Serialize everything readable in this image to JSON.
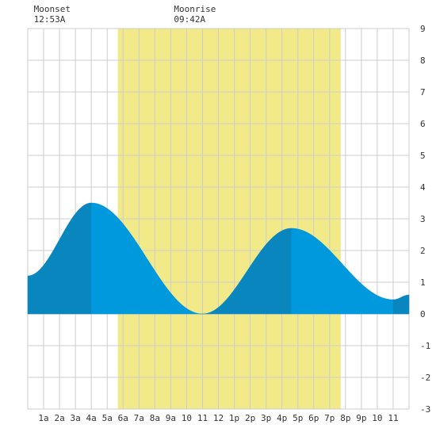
{
  "chart_data": {
    "type": "area",
    "title": "",
    "xlabel": "",
    "ylabel": "",
    "xlim": [
      0,
      24
    ],
    "ylim": [
      -3,
      9
    ],
    "y_ticks": [
      -3,
      -2,
      -1,
      0,
      1,
      2,
      3,
      4,
      5,
      6,
      7,
      8,
      9
    ],
    "x_tick_labels": [
      "1a",
      "2a",
      "3a",
      "4a",
      "5a",
      "6a",
      "7a",
      "8a",
      "9a",
      "10",
      "11",
      "12",
      "1p",
      "2p",
      "3p",
      "4p",
      "5p",
      "6p",
      "7p",
      "8p",
      "9p",
      "10",
      "11"
    ],
    "grid": true,
    "daylight": {
      "start": 5.67,
      "end": 19.7
    },
    "moon_events": [
      {
        "label": "Moonset",
        "time": "12:53A",
        "hour": 0.88
      },
      {
        "label": "Moonrise",
        "time": "09:42A",
        "hour": 9.7
      }
    ],
    "extremes": [
      {
        "type": "low",
        "hour": 0.0,
        "value": 1.2
      },
      {
        "type": "high",
        "hour": 4.0,
        "value": 3.5
      },
      {
        "type": "low",
        "hour": 11.0,
        "value": 0.0
      },
      {
        "type": "high",
        "hour": 16.6,
        "value": 2.7
      },
      {
        "type": "low",
        "hour": 23.0,
        "value": 0.45
      },
      {
        "type": "high",
        "hour": 24.0,
        "value": 0.6
      }
    ]
  },
  "colors": {
    "background": "#ffffff",
    "grid": "#cccccc",
    "daylight": "#f2ea88",
    "tide_rising": "#0a86bf",
    "tide_falling": "#0099dd",
    "text": "#333333"
  }
}
